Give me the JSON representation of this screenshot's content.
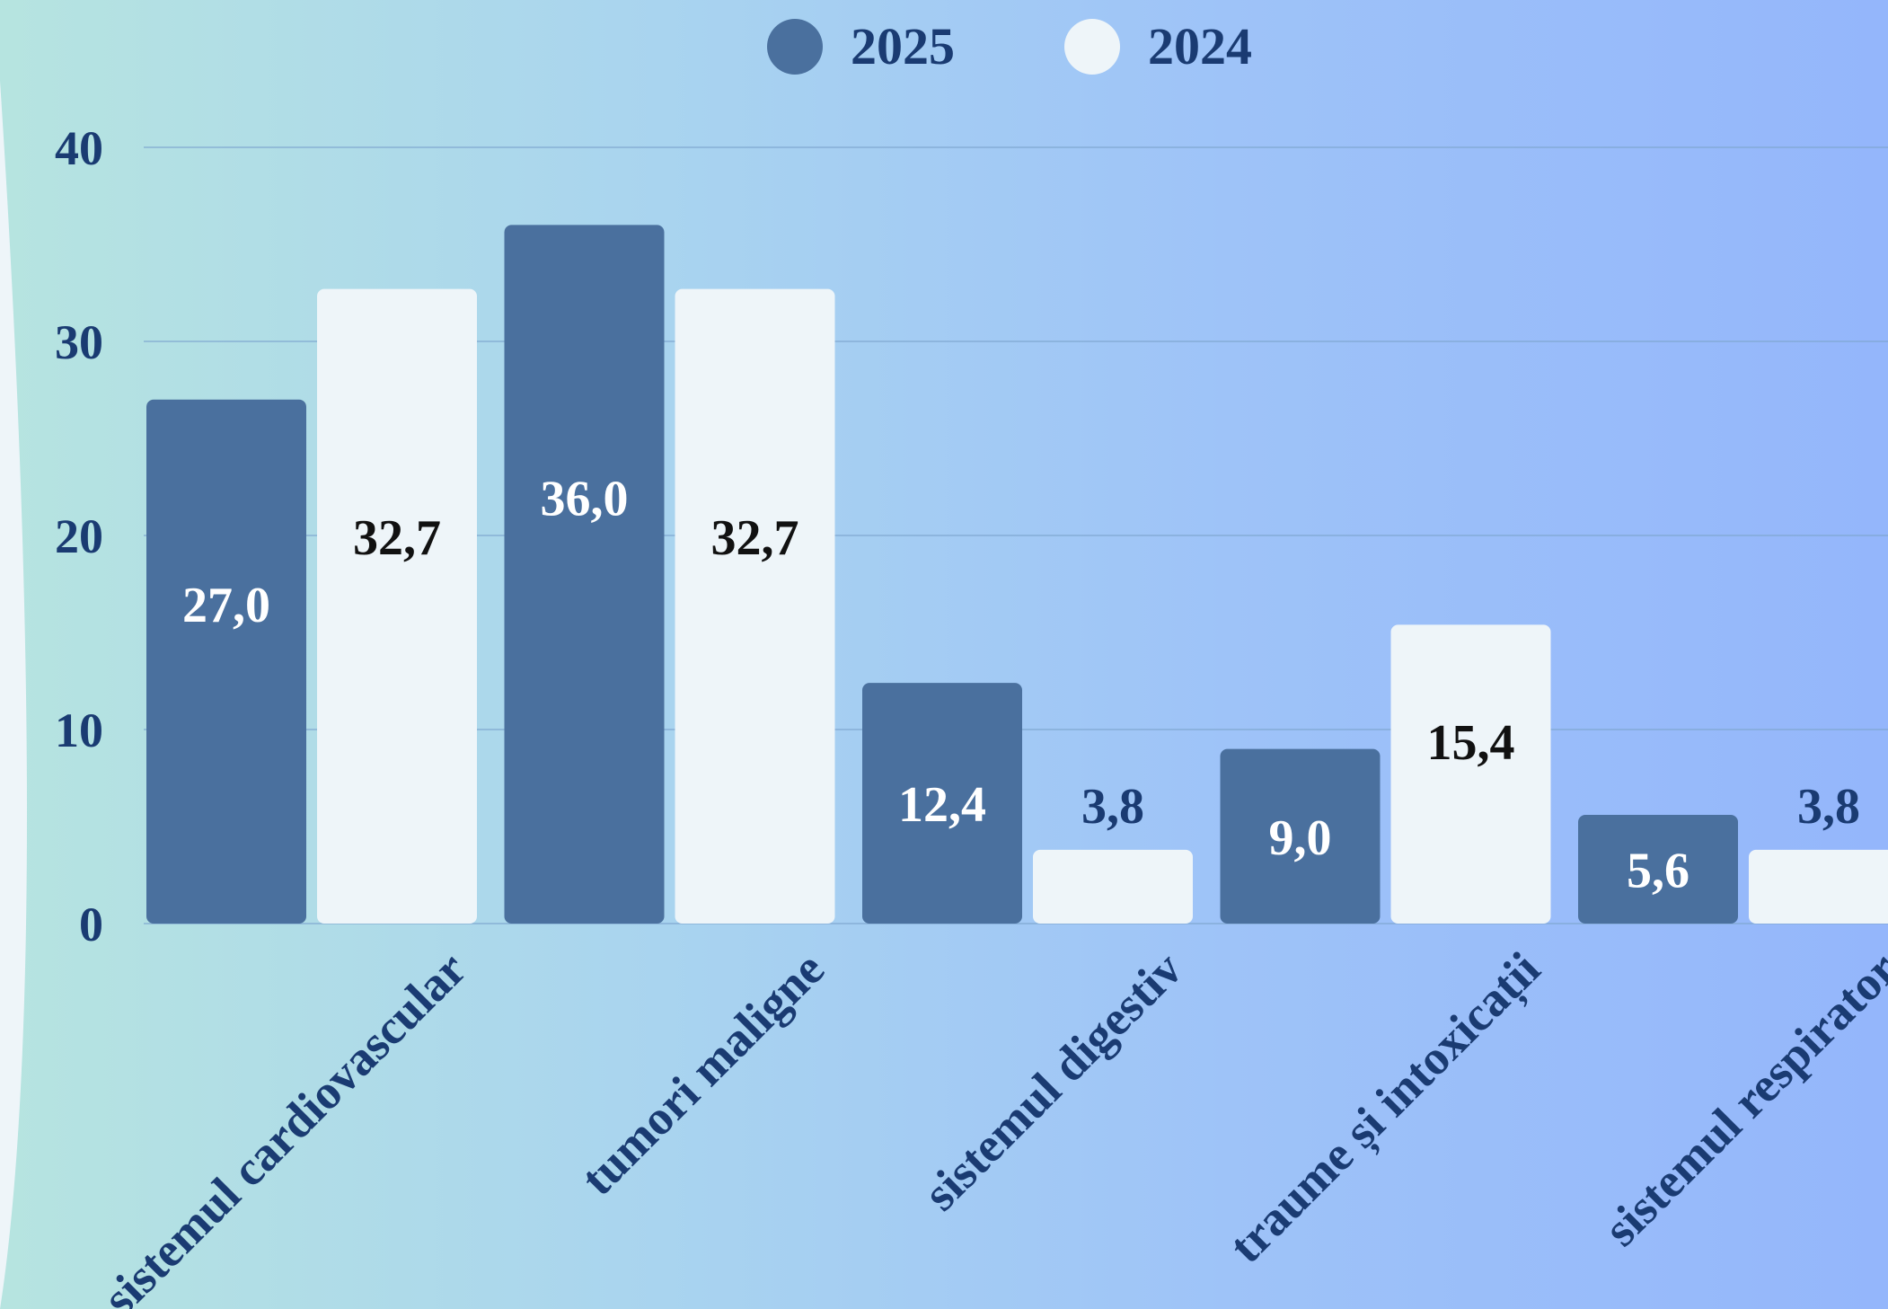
{
  "chart_data": {
    "type": "bar",
    "title": "",
    "xlabel": "",
    "ylabel": "",
    "ylim": [
      0,
      40
    ],
    "yticks": [
      0,
      10,
      20,
      30,
      40
    ],
    "grid": true,
    "legend_position": "top-center",
    "categories": [
      "sistemul cardiovascular",
      "tumori maligne",
      "sistemul digestiv",
      "traume și intoxicații",
      "sistemul respirator"
    ],
    "series": [
      {
        "name": "2025",
        "color": "#4a709e",
        "values": [
          27.0,
          36.0,
          12.4,
          9.0,
          5.6
        ],
        "labels": [
          "27,0",
          "36,0",
          "12,4",
          "9,0",
          "5,6"
        ]
      },
      {
        "name": "2024",
        "color": "#eef5f9",
        "values": [
          32.7,
          32.7,
          3.8,
          15.4,
          3.8
        ],
        "labels": [
          "32,7",
          "32,7",
          "3,8",
          "15,4",
          "3,8"
        ]
      }
    ],
    "colors": {
      "axis_text": "#1a3b72",
      "grid": "#7fa7d0",
      "label_on_dark": "#ffffff",
      "label_on_light": "#111111",
      "label_outside": "#1a3b72",
      "left_swoosh": "#eef5f9"
    }
  }
}
